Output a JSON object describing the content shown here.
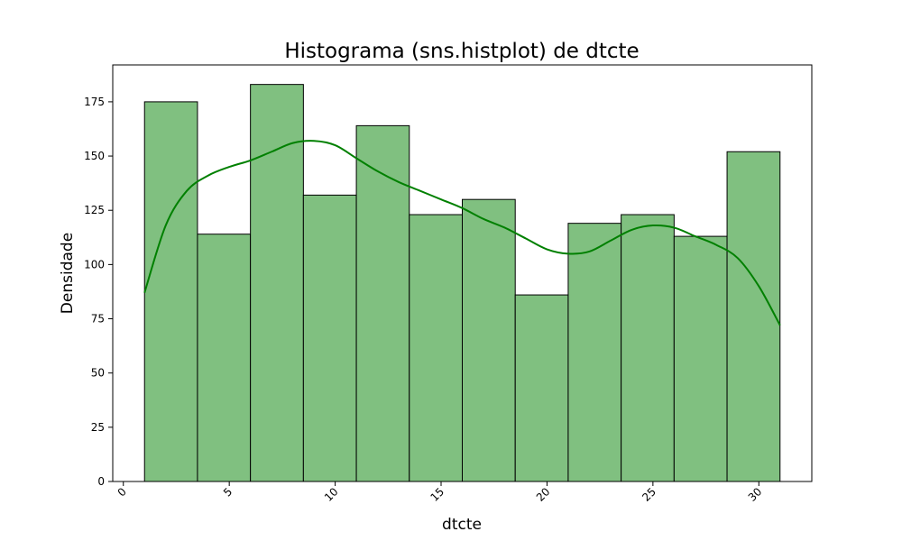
{
  "chart_data": {
    "type": "bar",
    "subtype": "histogram",
    "title": "Histograma (sns.histplot) de dtcte",
    "xlabel": "dtcte",
    "ylabel": "Densidade",
    "xlim": [
      -0.5,
      32.5
    ],
    "ylim": [
      0,
      192
    ],
    "x_ticks": [
      0,
      5,
      10,
      15,
      20,
      25,
      30
    ],
    "y_ticks": [
      0,
      25,
      50,
      75,
      100,
      125,
      150,
      175
    ],
    "x_tick_rotation": 45,
    "bin_edges": [
      1,
      3.5,
      6,
      8.5,
      11,
      13.5,
      16,
      18.5,
      21,
      23.5,
      26,
      28.5,
      31
    ],
    "values": [
      175,
      114,
      183,
      132,
      164,
      123,
      130,
      86,
      119,
      123,
      113,
      152
    ],
    "bar_color": "#80c080",
    "bar_edge_color": "#000000",
    "kde": {
      "color": "#008000",
      "x": [
        1,
        2,
        3,
        4,
        5,
        6,
        7,
        8,
        9,
        10,
        11,
        12,
        13,
        14,
        15,
        16,
        17,
        18,
        19,
        20,
        21,
        22,
        23,
        24,
        25,
        26,
        27,
        28,
        29,
        30,
        31
      ],
      "y": [
        87,
        118,
        134,
        141,
        145,
        148,
        152,
        156,
        157,
        155,
        149,
        143,
        138,
        134,
        130,
        126,
        121,
        117,
        112,
        107,
        105,
        106,
        111,
        116,
        118,
        117,
        113,
        109,
        103,
        90,
        72
      ]
    },
    "grid": false,
    "legend": "none"
  }
}
